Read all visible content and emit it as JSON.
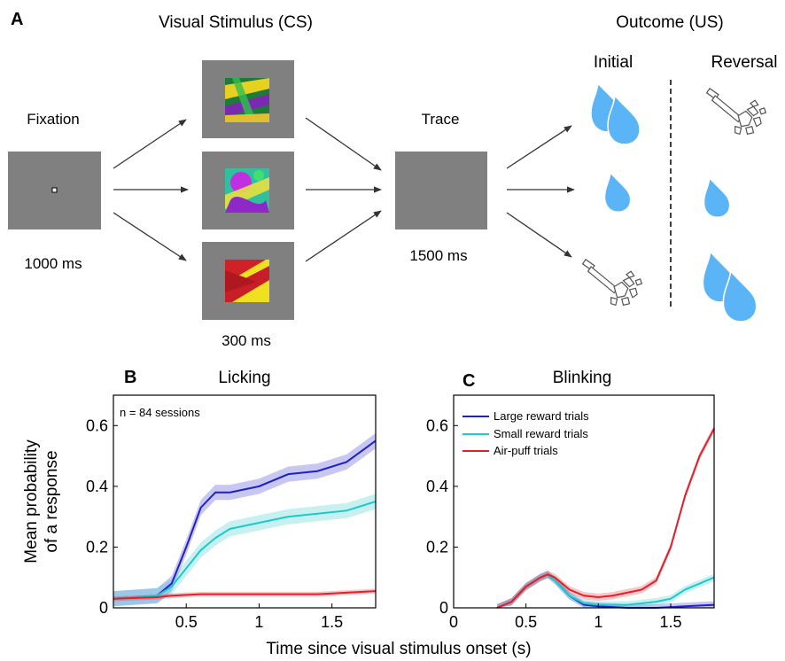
{
  "panel_a": {
    "label": "A",
    "stimulus_title": "Visual Stimulus (CS)",
    "outcome_title": "Outcome (US)",
    "initial_label": "Initial",
    "reversal_label": "Reversal",
    "fixation_label": "Fixation",
    "fixation_duration": "1000 ms",
    "stimulus_duration": "300 ms",
    "trace_label": "Trace",
    "trace_duration": "1500 ms",
    "stimulus_colors": [
      "#2aa83a",
      "#c33ae0",
      "#e0262a"
    ],
    "outcome_icons": {
      "initial": [
        "two-water-drops",
        "one-water-drop",
        "air-puff"
      ],
      "reversal": [
        "air-puff",
        "one-water-drop",
        "two-water-drops"
      ]
    }
  },
  "panel_b": {
    "label": "B",
    "title": "Licking",
    "annotation": "n = 84 sessions"
  },
  "panel_c": {
    "label": "C",
    "title": "Blinking"
  },
  "shared": {
    "ylabel_line1": "Mean probability",
    "ylabel_line2": "of a response",
    "xlabel": "Time since visual stimulus onset (s)"
  },
  "chart_data": [
    {
      "type": "line",
      "title": "Licking",
      "xlabel": "Time since visual stimulus onset (s)",
      "ylabel": "Mean probability of a response",
      "xlim": [
        0,
        1.8
      ],
      "ylim": [
        0,
        0.7
      ],
      "xticks": [
        "0.5",
        "1",
        "1.5"
      ],
      "yticks": [
        "0",
        "0.2",
        "0.4",
        "0.6"
      ],
      "annotation": "n = 84 sessions",
      "series": [
        {
          "color": "#2020c8",
          "band": 0.025,
          "x": [
            0,
            0.3,
            0.4,
            0.5,
            0.6,
            0.7,
            0.8,
            1.0,
            1.2,
            1.4,
            1.6,
            1.8
          ],
          "y": [
            0.03,
            0.04,
            0.08,
            0.2,
            0.33,
            0.38,
            0.38,
            0.4,
            0.44,
            0.45,
            0.48,
            0.55
          ]
        },
        {
          "color": "#20c8c8",
          "band": 0.025,
          "x": [
            0,
            0.3,
            0.4,
            0.5,
            0.6,
            0.7,
            0.8,
            1.0,
            1.2,
            1.4,
            1.6,
            1.8
          ],
          "y": [
            0.03,
            0.04,
            0.07,
            0.13,
            0.19,
            0.23,
            0.26,
            0.28,
            0.3,
            0.31,
            0.32,
            0.35
          ]
        },
        {
          "color": "#e0202a",
          "band": 0.008,
          "x": [
            0,
            0.3,
            0.4,
            0.6,
            0.8,
            1.0,
            1.2,
            1.4,
            1.6,
            1.8
          ],
          "y": [
            0.03,
            0.035,
            0.04,
            0.045,
            0.045,
            0.045,
            0.045,
            0.045,
            0.05,
            0.055
          ]
        }
      ]
    },
    {
      "type": "line",
      "title": "Blinking",
      "xlabel": "Time since visual stimulus onset (s)",
      "ylabel": "Mean probability of a response",
      "xlim": [
        0,
        1.8
      ],
      "ylim": [
        0,
        0.7
      ],
      "xticks": [
        "0",
        "0.5",
        "1",
        "1.5"
      ],
      "yticks": [
        "0",
        "0.2",
        "0.4",
        "0.6"
      ],
      "legend_position": "top-left",
      "series": [
        {
          "name": "Large reward trials",
          "color": "#2020c8",
          "band": 0.012,
          "x": [
            0.3,
            0.4,
            0.5,
            0.6,
            0.65,
            0.7,
            0.8,
            0.9,
            1.0,
            1.2,
            1.4,
            1.6,
            1.8
          ],
          "y": [
            0.0,
            0.02,
            0.07,
            0.1,
            0.11,
            0.09,
            0.04,
            0.01,
            0.005,
            0.0,
            0.0,
            0.005,
            0.01
          ]
        },
        {
          "name": "Small reward trials",
          "color": "#20c8c8",
          "band": 0.012,
          "x": [
            0.3,
            0.4,
            0.5,
            0.6,
            0.65,
            0.7,
            0.8,
            0.9,
            1.0,
            1.2,
            1.4,
            1.5,
            1.6,
            1.8
          ],
          "y": [
            0.0,
            0.02,
            0.07,
            0.1,
            0.11,
            0.09,
            0.04,
            0.015,
            0.01,
            0.01,
            0.02,
            0.03,
            0.06,
            0.1
          ]
        },
        {
          "name": "Air-puff trials",
          "color": "#e0202a",
          "band": 0.012,
          "x": [
            0.3,
            0.4,
            0.5,
            0.6,
            0.65,
            0.7,
            0.8,
            0.9,
            1.0,
            1.1,
            1.2,
            1.3,
            1.4,
            1.5,
            1.6,
            1.7,
            1.8
          ],
          "y": [
            0.0,
            0.02,
            0.07,
            0.1,
            0.11,
            0.1,
            0.06,
            0.04,
            0.035,
            0.04,
            0.05,
            0.06,
            0.09,
            0.2,
            0.37,
            0.5,
            0.59
          ]
        }
      ]
    }
  ]
}
